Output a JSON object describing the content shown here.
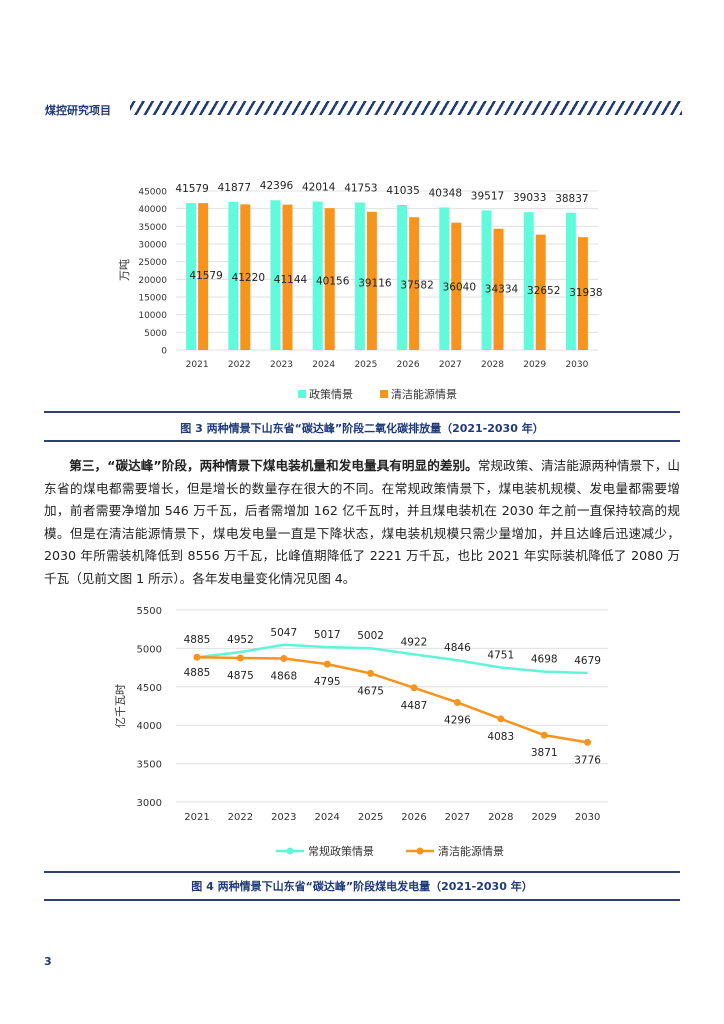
{
  "header": {
    "title": "煤控研究项目"
  },
  "figure3": {
    "caption": "图 3 两种情景下山东省“碳达峰”阶段二氧化碳排放量（2021-2030 年）"
  },
  "paragraph": {
    "lead": "第三，“碳达峰”阶段，两种情景下煤电装机量和发电量具有明显的差别。",
    "body": "常规政策、清洁能源两种情景下，山东省的煤电都需要增长，但是增长的数量存在很大的不同。在常规政策情景下，煤电装机规模、发电量都需要增加，前者需要净增加 546 万千瓦，后者需增加 162 亿千瓦时，并且煤电装机在 2030 年之前一直保持较高的规模。但是在清洁能源情景下，煤电发电量一直是下降状态，煤电装机规模只需少量增加，并且达峰后迅速减少，2030 年所需装机降低到 8556 万千瓦，比峰值期降低了 2221 万千瓦，也比 2021 年实际装机降低了 2080 万千瓦（见前文图 1 所示）。各年发电量变化情况见图 4。"
  },
  "figure4": {
    "caption": "图 4 两种情景下山东省“碳达峰”阶段煤电发电量（2021-2030 年）"
  },
  "page_number": "3",
  "chart_data": [
    {
      "type": "bar",
      "ylabel": "万吨",
      "ylim": [
        0,
        45000
      ],
      "yticks": [
        0,
        5000,
        10000,
        15000,
        20000,
        25000,
        30000,
        35000,
        40000,
        45000
      ],
      "grid": true,
      "legend": "bottom",
      "categories": [
        "2021",
        "2022",
        "2023",
        "2024",
        "2025",
        "2026",
        "2027",
        "2028",
        "2029",
        "2030"
      ],
      "series": [
        {
          "name": "政策情景",
          "color": "#5ffbdc",
          "values": [
            41579,
            41877,
            42396,
            42014,
            41753,
            41035,
            40348,
            39517,
            39033,
            38837
          ]
        },
        {
          "name": "清洁能源情景",
          "color": "#f7941d",
          "values": [
            41579,
            41220,
            41144,
            40156,
            39116,
            37582,
            36040,
            34334,
            32652,
            31938
          ]
        }
      ]
    },
    {
      "type": "line",
      "ylabel": "亿千瓦时",
      "ylim": [
        3000,
        5500
      ],
      "yticks": [
        3000,
        3500,
        4000,
        4500,
        5000,
        5500
      ],
      "grid": true,
      "legend": "bottom",
      "categories": [
        "2021",
        "2022",
        "2023",
        "2024",
        "2025",
        "2026",
        "2027",
        "2028",
        "2029",
        "2030"
      ],
      "series": [
        {
          "name": "常规政策情景",
          "color": "#5ff5d8",
          "values": [
            4885,
            4952,
            5047,
            5017,
            5002,
            4922,
            4846,
            4751,
            4698,
            4679
          ]
        },
        {
          "name": "清洁能源情景",
          "color": "#f7941d",
          "values": [
            4885,
            4875,
            4868,
            4795,
            4675,
            4487,
            4296,
            4083,
            3871,
            3776
          ]
        }
      ]
    }
  ]
}
